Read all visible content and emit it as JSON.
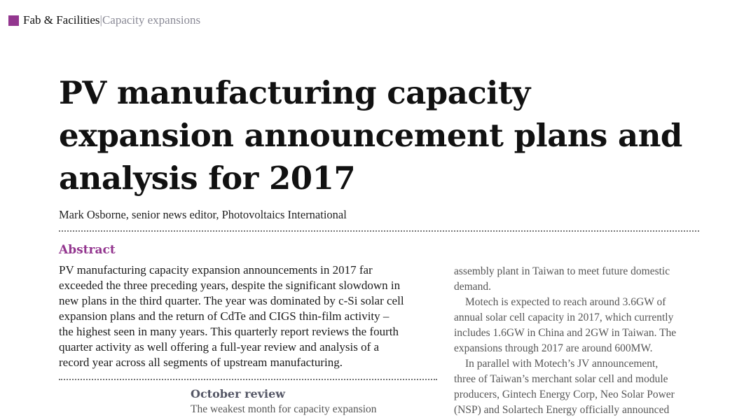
{
  "header": {
    "section": "Fab & Facilities",
    "separator": " | ",
    "subsection": "Capacity expansions",
    "accent": "#93368f"
  },
  "article": {
    "title_lines": [
      "PV manufacturing capacity",
      "expansion announcement plans and",
      "analysis for 2017"
    ],
    "author": "Mark Osborne, senior news editor, Photovoltaics International",
    "abstract_heading": "Abstract",
    "abstract_lines": [
      "PV manufacturing capacity expansion announcements in 2017 far",
      "exceeded the three preceding years, despite the significant slowdown in",
      "new plans in the third quarter. The year was dominated by c-Si solar cell",
      "expansion plans and the return of CdTe and CIGS thin-film activity –",
      "the highest seen in many years. This quarterly report reviews the fourth",
      "quarter activity as well offering a full-year review and analysis of a",
      "record year across all segments of upstream manufacturing."
    ],
    "october_heading": "October review",
    "october_text": "The weakest month for capacity expansion",
    "right_column_lines": [
      "assembly plant in Taiwan to meet future domestic",
      "demand.",
      "Motech is expected to reach around 3.6GW of",
      "annual solar cell capacity in 2017, which currently",
      "includes 1.6GW in China and 2GW in Taiwan. The",
      "expansions through 2017 are around 600MW.",
      "In parallel with Motech’s JV announcement,",
      "three of Taiwan’s merchant solar cell and module",
      "producers, Gintech Energy Corp, Neo Solar Power",
      "(NSP) and Solartech Energy officially announced"
    ]
  }
}
